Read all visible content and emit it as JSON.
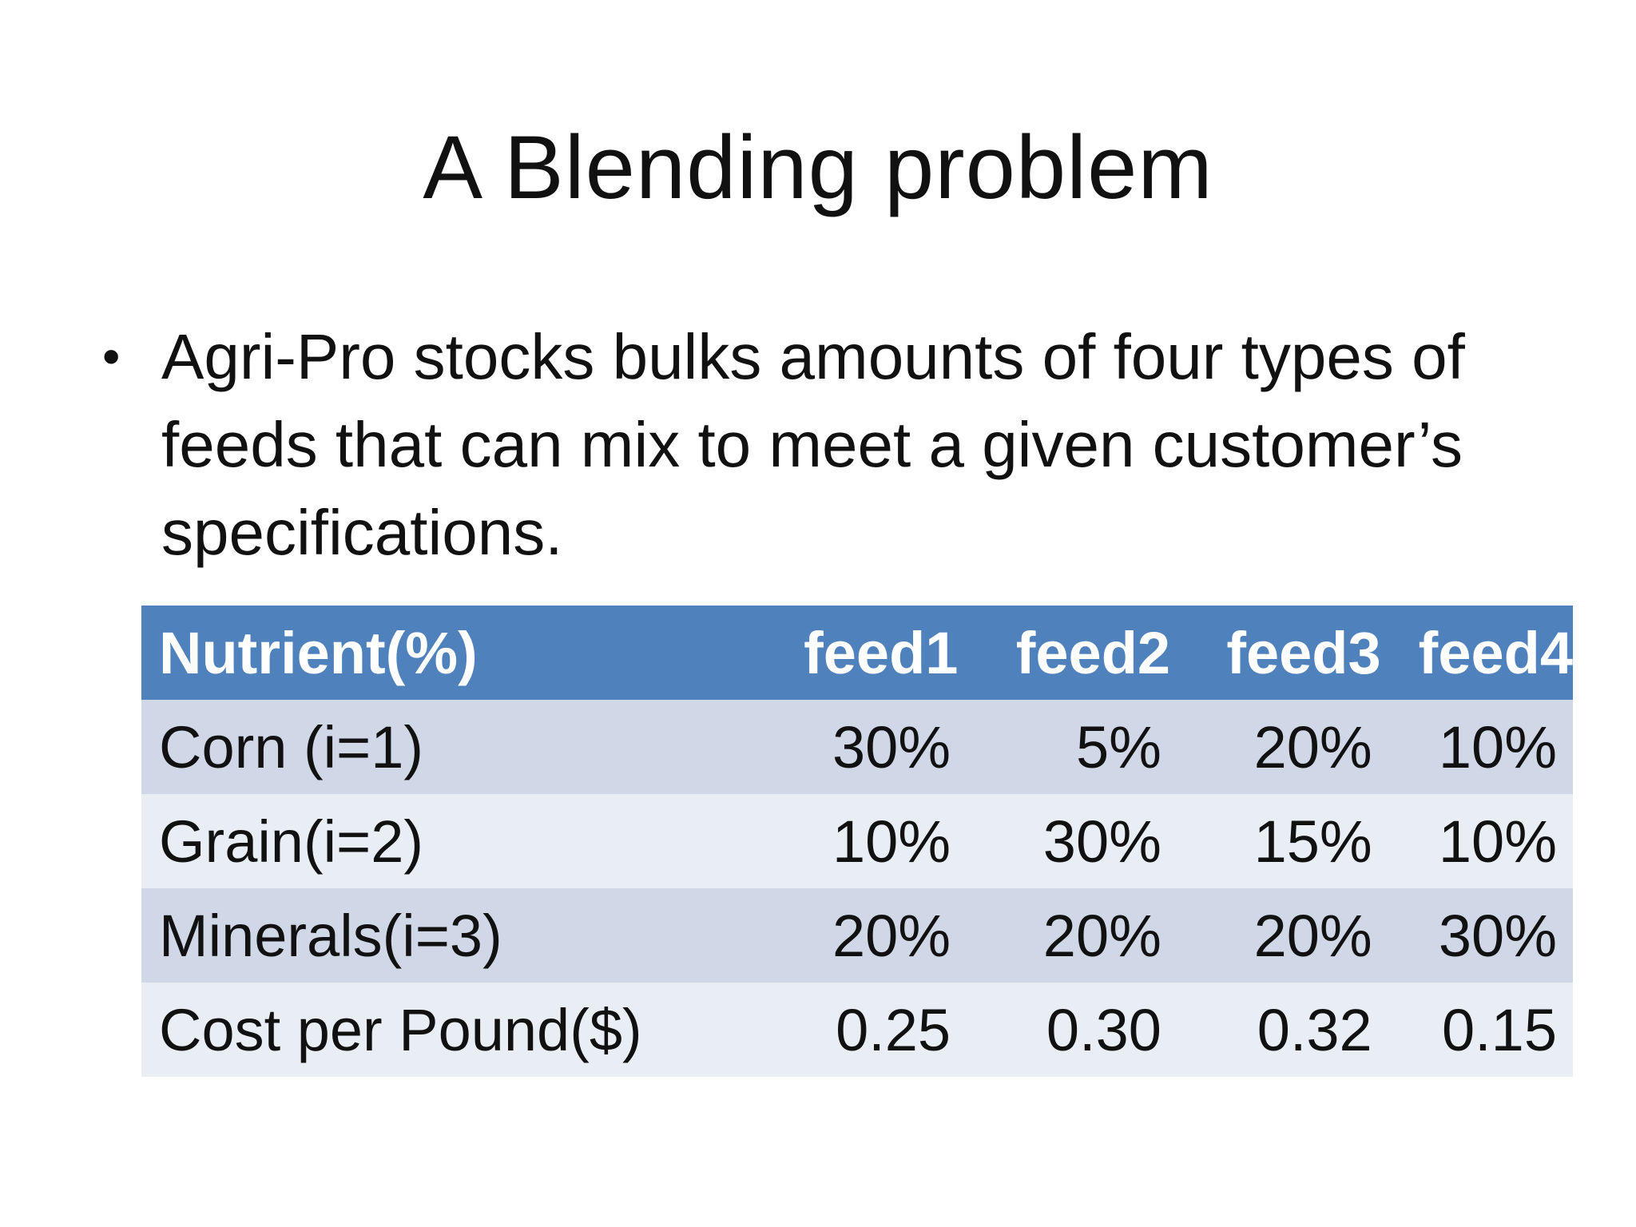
{
  "slide": {
    "title": "A Blending problem",
    "bullet_symbol": "•",
    "bullet_text": "Agri-Pro stocks bulks amounts of four types of feeds that can mix to meet a given customer’s specifications."
  },
  "table": {
    "headers": [
      "Nutrient(%)",
      "feed1",
      "feed2",
      "feed3",
      "feed4"
    ],
    "rows": [
      {
        "label": "Corn (i=1)",
        "values": [
          "30%",
          "5%",
          "20%",
          "10%"
        ]
      },
      {
        "label": "Grain(i=2)",
        "values": [
          "10%",
          "30%",
          "15%",
          "10%"
        ]
      },
      {
        "label": "Minerals(i=3)",
        "values": [
          "20%",
          "20%",
          "20%",
          "30%"
        ]
      },
      {
        "label": "Cost per Pound($)",
        "values": [
          "0.25",
          "0.30",
          "0.32",
          "0.15"
        ]
      }
    ]
  },
  "colors": {
    "header_bg": "#4f81bd",
    "row_odd_bg": "#d0d8e8",
    "row_even_bg": "#e9edf4"
  }
}
